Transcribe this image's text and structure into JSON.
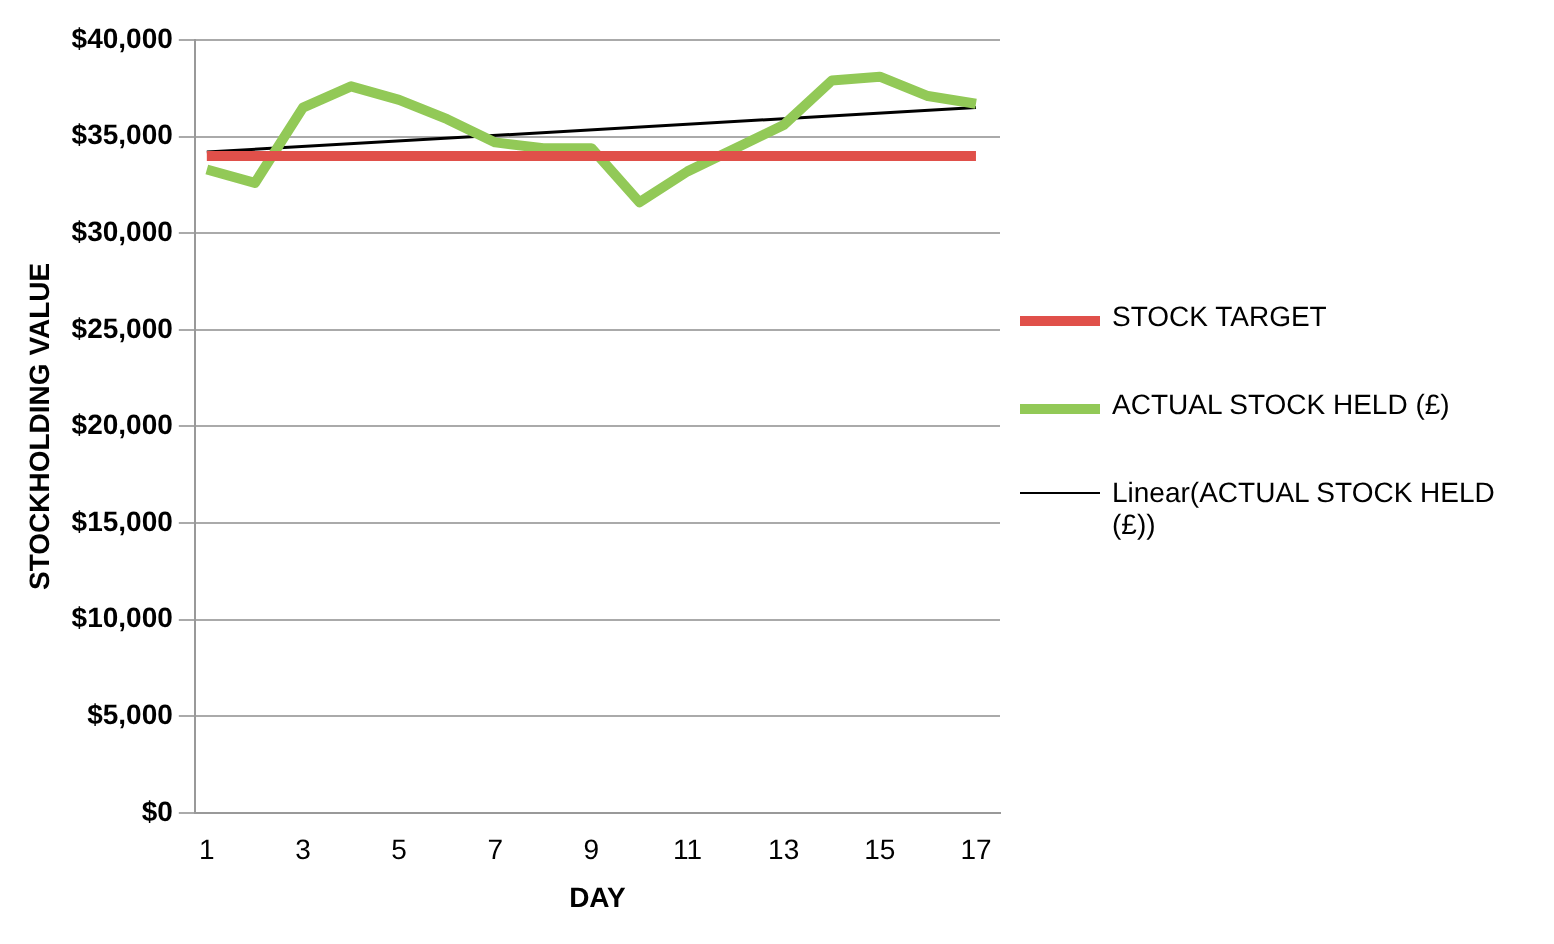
{
  "chart_data": {
    "type": "line",
    "xlabel": "DAY",
    "ylabel": "STOCKHOLDING VALUE",
    "x": [
      1,
      2,
      3,
      4,
      5,
      6,
      7,
      8,
      9,
      10,
      11,
      12,
      13,
      14,
      15,
      16,
      17
    ],
    "xlim": [
      0.75,
      17.5
    ],
    "xticks": [
      1,
      3,
      5,
      7,
      9,
      11,
      13,
      15,
      17
    ],
    "ylim": [
      0,
      40000
    ],
    "yticks": [
      {
        "value": 0,
        "label": "$0"
      },
      {
        "value": 5000,
        "label": "$5,000"
      },
      {
        "value": 10000,
        "label": "$10,000"
      },
      {
        "value": 15000,
        "label": "$15,000"
      },
      {
        "value": 20000,
        "label": "$20,000"
      },
      {
        "value": 25000,
        "label": "$25,000"
      },
      {
        "value": 30000,
        "label": "$30,000"
      },
      {
        "value": 35000,
        "label": "$35,000"
      },
      {
        "value": 40000,
        "label": "$40,000"
      }
    ],
    "series": [
      {
        "name": "STOCK TARGET",
        "color": "#e0504a",
        "values": [
          34000,
          34000,
          34000,
          34000,
          34000,
          34000,
          34000,
          34000,
          34000,
          34000,
          34000,
          34000,
          34000,
          34000,
          34000,
          34000,
          34000
        ]
      },
      {
        "name": "ACTUAL STOCK HELD (£)",
        "color": "#92c957",
        "values": [
          33300,
          32600,
          36500,
          37600,
          36900,
          35900,
          34700,
          34400,
          34400,
          31600,
          33200,
          34400,
          35600,
          37900,
          38100,
          37100,
          36700
        ]
      },
      {
        "name": "Linear(ACTUAL STOCK HELD (£))",
        "color": "#000000",
        "x": [
          1,
          17
        ],
        "values": [
          34200,
          36500
        ]
      }
    ],
    "grid": "y",
    "legend": "right",
    "marker": "none",
    "line_style": "solid"
  }
}
